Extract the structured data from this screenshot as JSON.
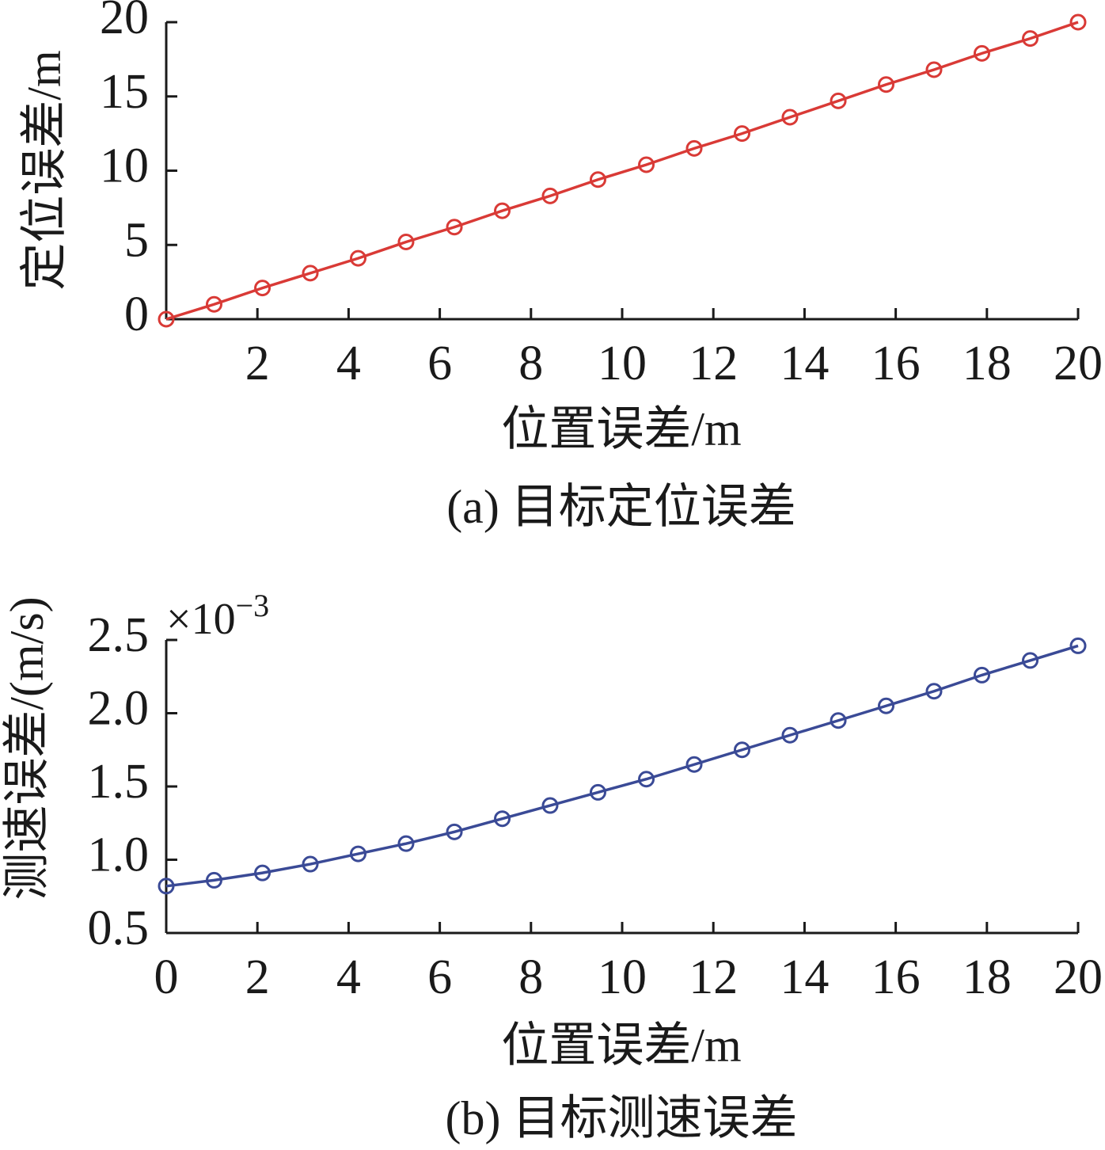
{
  "chart_data": [
    {
      "type": "line",
      "caption": "(a) 目标定位误差",
      "xlabel": "位置误差/m",
      "ylabel": "定位误差/m",
      "xlim": [
        0,
        20
      ],
      "ylim": [
        0,
        20
      ],
      "xticks": [
        2,
        4,
        6,
        8,
        10,
        12,
        14,
        16,
        18,
        20
      ],
      "xtick_labels": [
        "2",
        "4",
        "6",
        "8",
        "10",
        "12",
        "14",
        "16",
        "18",
        "20"
      ],
      "yticks": [
        0,
        5,
        10,
        15,
        20
      ],
      "ytick_labels": [
        "0",
        "5",
        "10",
        "15",
        "20"
      ],
      "grid": false,
      "series": [
        {
          "color": "#d93a36",
          "marker": "circle",
          "x": [
            0,
            1.05,
            2.11,
            3.16,
            4.21,
            5.26,
            6.32,
            7.37,
            8.42,
            9.47,
            10.53,
            11.58,
            12.63,
            13.68,
            14.74,
            15.79,
            16.84,
            17.89,
            18.95,
            20
          ],
          "y": [
            0,
            1.0,
            2.1,
            3.1,
            4.1,
            5.2,
            6.2,
            7.3,
            8.3,
            9.4,
            10.4,
            11.5,
            12.5,
            13.6,
            14.7,
            15.8,
            16.8,
            17.9,
            18.9,
            20
          ]
        }
      ]
    },
    {
      "type": "line",
      "caption": "(b) 目标测速误差",
      "xlabel": "位置误差/m",
      "ylabel": "测速误差/(m/s)",
      "exponent_label": "×10",
      "exponent_power": "−3",
      "xlim": [
        0,
        20
      ],
      "ylim": [
        0.5,
        2.5
      ],
      "xticks": [
        0,
        2,
        4,
        6,
        8,
        10,
        12,
        14,
        16,
        18,
        20
      ],
      "xtick_labels": [
        "0",
        "2",
        "4",
        "6",
        "8",
        "10",
        "12",
        "14",
        "16",
        "18",
        "20"
      ],
      "yticks": [
        0.5,
        1.0,
        1.5,
        2.0,
        2.5
      ],
      "ytick_labels": [
        "0.5",
        "1.0",
        "1.5",
        "2.0",
        "2.5"
      ],
      "grid": false,
      "series": [
        {
          "color": "#3a4a96",
          "marker": "circle",
          "x": [
            0,
            1.05,
            2.11,
            3.16,
            4.21,
            5.26,
            6.32,
            7.37,
            8.42,
            9.47,
            10.53,
            11.58,
            12.63,
            13.68,
            14.74,
            15.79,
            16.84,
            17.89,
            18.95,
            20
          ],
          "y": [
            0.82,
            0.86,
            0.91,
            0.97,
            1.04,
            1.11,
            1.19,
            1.28,
            1.37,
            1.46,
            1.55,
            1.65,
            1.75,
            1.85,
            1.95,
            2.05,
            2.15,
            2.26,
            2.36,
            2.46
          ]
        }
      ]
    }
  ]
}
